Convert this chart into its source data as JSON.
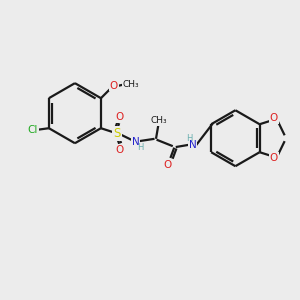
{
  "bg_color": "#ececec",
  "bond_color": "#1a1a1a",
  "atom_colors": {
    "C": "#1a1a1a",
    "N": "#2222cc",
    "O": "#dd2222",
    "S": "#cccc00",
    "Cl": "#22aa22",
    "H": "#6aafaf"
  },
  "lw": 1.6,
  "fs": 7.5
}
